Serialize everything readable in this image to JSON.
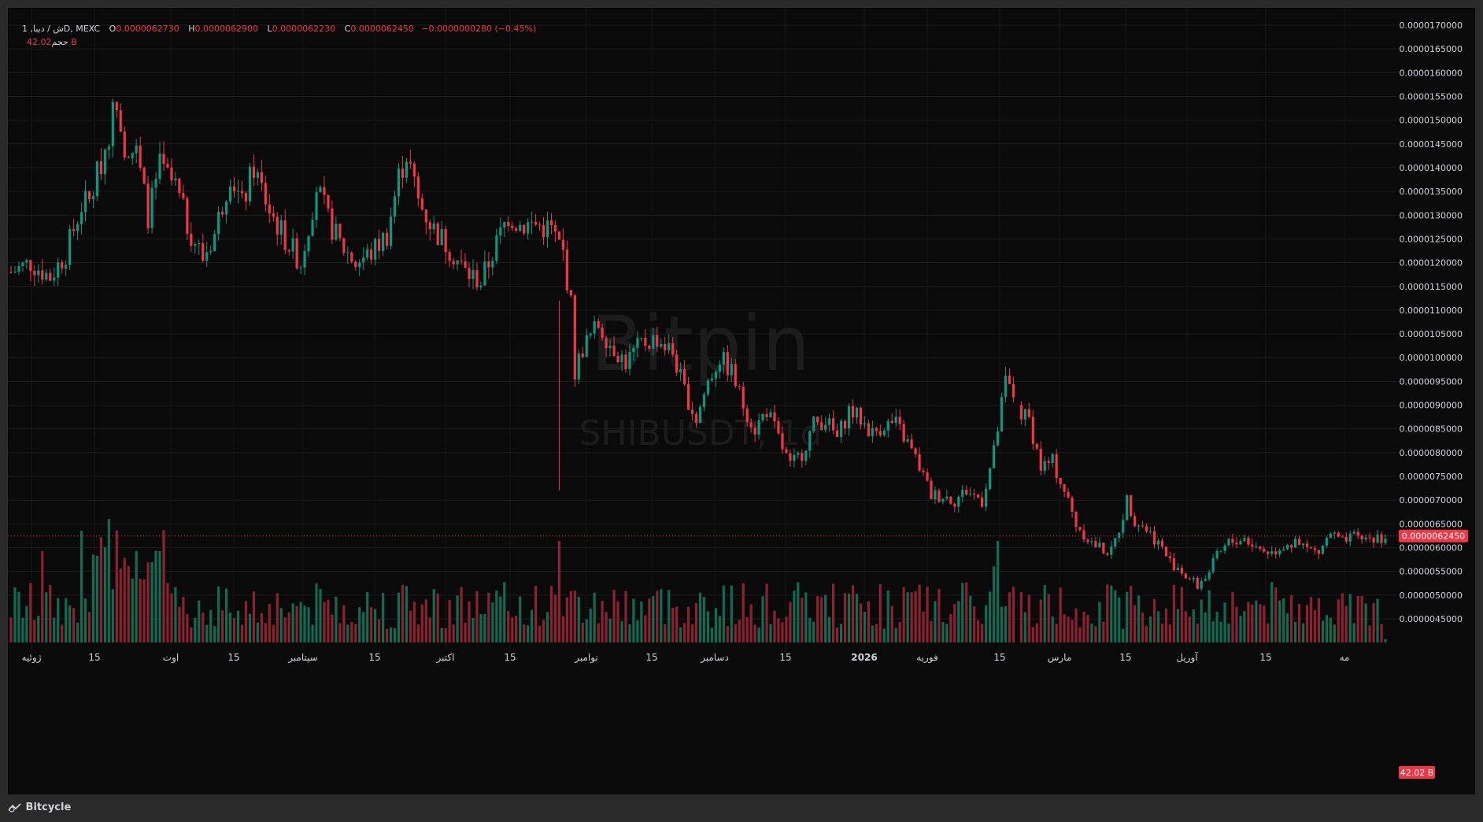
{
  "legend": {
    "symbol": "1 ,ش / ديبا",
    "exchange_sep": "D, MEXC",
    "open_label": "O",
    "open": "0.0000062730",
    "high_label": "H",
    "high": "0.0000062900",
    "low_label": "L",
    "low": "0.0000062230",
    "close_label": "C",
    "close": "0.0000062450",
    "change": "−0.0000000280 (−0.45%)",
    "volume_label": "حجم",
    "volume": "42.02 B"
  },
  "watermark": {
    "brand": "Bitpin",
    "pair": "SHIBUSDT, 1d"
  },
  "footer": {
    "brand": "Bitcycle"
  },
  "colors": {
    "up": "#089981",
    "down": "#f23645",
    "vol_up": "#0f6b52",
    "vol_down": "#8c2230",
    "bg": "#0a0a0a",
    "text": "#d1d4dc"
  },
  "chart_data": {
    "type": "candlestick",
    "symbol": "SHIBUSDT",
    "interval": "1d",
    "exchange": "MEXC",
    "price_axis": {
      "ticks": [
        "0.0000045000",
        "0.0000050000",
        "0.0000055000",
        "0.0000060000",
        "0.0000065000",
        "0.0000070000",
        "0.0000075000",
        "0.0000080000",
        "0.0000085000",
        "0.0000090000",
        "0.0000095000",
        "0.0000100000",
        "0.0000105000",
        "0.0000110000",
        "0.0000115000",
        "0.0000120000",
        "0.0000125000",
        "0.0000130000",
        "0.0000135000",
        "0.0000140000",
        "0.0000145000",
        "0.0000150000",
        "0.0000155000",
        "0.0000160000",
        "0.0000165000",
        "0.0000170000"
      ],
      "range": [
        4e-06,
        1.77e-05
      ]
    },
    "last_price_label": "0.0000062450",
    "volume_label": "42.02 B",
    "time_axis": [
      "ژوئیه",
      "15",
      "اوت",
      "15",
      "سپتامبر",
      "15",
      "اکتبر",
      "15",
      "نوامبر",
      "15",
      "دسامبر",
      "15",
      "2026",
      "فوریه",
      "15",
      "مارس",
      "15",
      "آوریل",
      "15",
      "مه"
    ],
    "time_axis_bold": "2026",
    "close_path": [
      [
        0,
        11.8
      ],
      [
        5,
        12.0
      ],
      [
        10,
        11.7
      ],
      [
        14,
        12.2
      ],
      [
        18,
        13.2
      ],
      [
        20,
        13.3
      ],
      [
        24,
        14.4
      ],
      [
        27,
        15.5
      ],
      [
        29,
        14.5
      ],
      [
        32,
        14.3
      ],
      [
        35,
        13.0
      ],
      [
        38,
        14.0
      ],
      [
        42,
        13.6
      ],
      [
        45,
        12.8
      ],
      [
        49,
        12.1
      ],
      [
        52,
        12.6
      ],
      [
        56,
        13.9
      ],
      [
        59,
        13.2
      ],
      [
        62,
        14.0
      ],
      [
        66,
        13.1
      ],
      [
        70,
        12.5
      ],
      [
        74,
        12.0
      ],
      [
        78,
        13.6
      ],
      [
        81,
        12.9
      ],
      [
        84,
        12.4
      ],
      [
        88,
        12.0
      ],
      [
        92,
        12.2
      ],
      [
        96,
        12.6
      ],
      [
        99,
        13.8
      ],
      [
        101,
        14.3
      ],
      [
        104,
        13.3
      ],
      [
        108,
        12.7
      ],
      [
        112,
        12.3
      ],
      [
        116,
        11.8
      ],
      [
        120,
        11.6
      ],
      [
        124,
        12.4
      ],
      [
        127,
        13.0
      ],
      [
        130,
        12.8
      ],
      [
        134,
        12.8
      ],
      [
        138,
        12.7
      ],
      [
        141,
        12.2
      ],
      [
        143,
        11.1
      ],
      [
        144,
        9.7
      ],
      [
        146,
        10.2
      ],
      [
        150,
        10.7
      ],
      [
        153,
        10.3
      ],
      [
        157,
        9.9
      ],
      [
        161,
        10.3
      ],
      [
        165,
        10.4
      ],
      [
        169,
        10.1
      ],
      [
        172,
        9.3
      ],
      [
        175,
        8.7
      ],
      [
        178,
        9.5
      ],
      [
        181,
        10.0
      ],
      [
        184,
        9.7
      ],
      [
        187,
        9.0
      ],
      [
        190,
        8.5
      ],
      [
        193,
        8.9
      ],
      [
        196,
        8.3
      ],
      [
        199,
        7.7
      ],
      [
        202,
        8.0
      ],
      [
        205,
        8.6
      ],
      [
        208,
        8.7
      ],
      [
        211,
        8.3
      ],
      [
        214,
        8.9
      ],
      [
        217,
        8.7
      ],
      [
        220,
        8.4
      ],
      [
        223,
        8.6
      ],
      [
        226,
        8.6
      ],
      [
        229,
        8.2
      ],
      [
        232,
        7.7
      ],
      [
        235,
        7.1
      ],
      [
        238,
        7.1
      ],
      [
        241,
        7.0
      ],
      [
        244,
        7.2
      ],
      [
        248,
        7.0
      ],
      [
        251,
        8.0
      ],
      [
        254,
        9.5
      ],
      [
        256,
        9.2
      ],
      [
        258,
        8.8
      ],
      [
        260,
        8.7
      ],
      [
        263,
        7.7
      ],
      [
        266,
        7.8
      ],
      [
        269,
        7.2
      ],
      [
        272,
        6.5
      ],
      [
        274,
        6.3
      ],
      [
        276,
        6.1
      ],
      [
        278,
        6.0
      ],
      [
        281,
        5.9
      ],
      [
        283,
        6.4
      ],
      [
        285,
        7.0
      ],
      [
        287,
        6.6
      ],
      [
        290,
        6.4
      ],
      [
        293,
        6.1
      ],
      [
        296,
        5.7
      ],
      [
        298,
        5.6
      ],
      [
        300,
        5.4
      ],
      [
        303,
        5.2
      ],
      [
        306,
        5.5
      ],
      [
        308,
        5.8
      ],
      [
        311,
        6.1
      ],
      [
        315,
        6.2
      ],
      [
        318,
        6.0
      ],
      [
        322,
        5.9
      ],
      [
        326,
        6.1
      ],
      [
        330,
        6.0
      ],
      [
        334,
        5.9
      ],
      [
        337,
        6.3
      ],
      [
        340,
        6.1
      ],
      [
        343,
        6.2
      ],
      [
        346,
        6.2
      ],
      [
        349,
        6.2
      ],
      [
        351,
        6.245
      ]
    ],
    "spikes": {
      "140": [
        7.2,
        11.2
      ]
    },
    "gaps": [
      257
    ],
    "volume_highlights": {
      "25": 73,
      "18": 66,
      "140": 60,
      "252": 60,
      "251": 45,
      "8": 54
    }
  }
}
